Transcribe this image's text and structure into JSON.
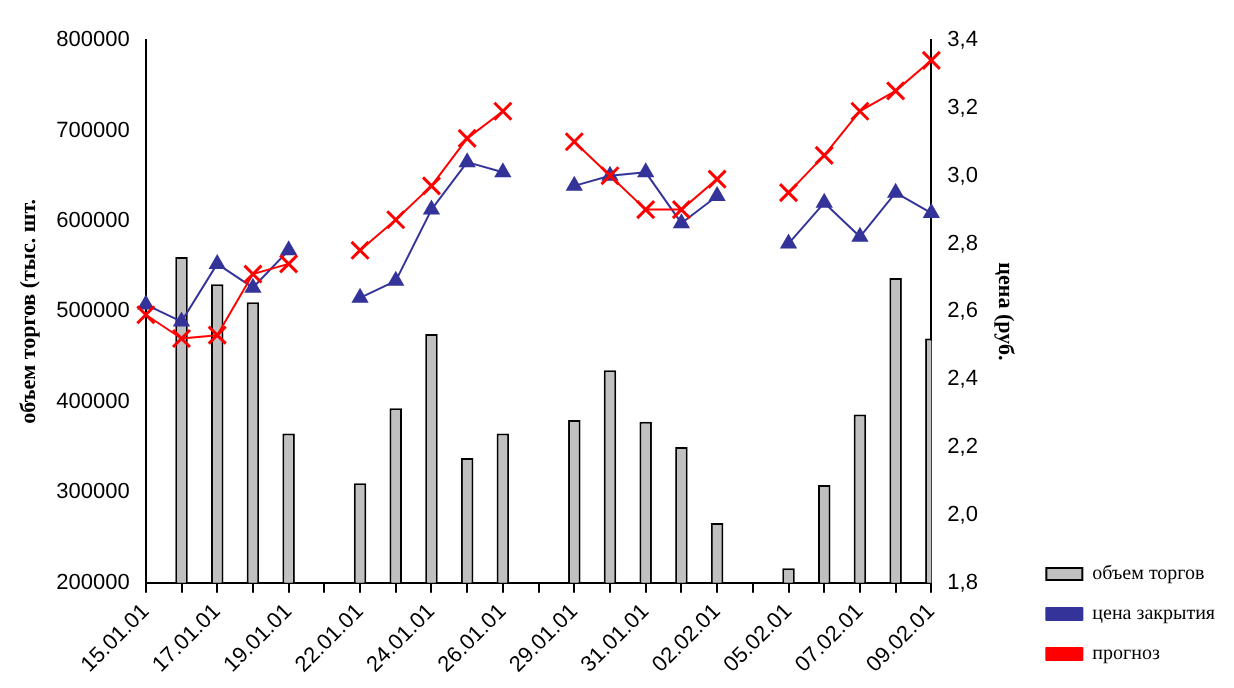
{
  "chart_data": {
    "type": "bar",
    "xlabel": null,
    "ylabel": "объем торгов (тыс. шт.",
    "y2label": "цена (руб.",
    "categories": [
      "15.01.01",
      null,
      "17.01.01",
      null,
      "19.01.01",
      null,
      "22.01.01",
      null,
      "24.01.01",
      null,
      "26.01.01",
      null,
      "29.01.01",
      null,
      "31.01.01",
      null,
      "02.02.01",
      null,
      "05.02.01",
      null,
      "07.02.01",
      null,
      "09.02.01"
    ],
    "series": [
      {
        "name": "объем торгов",
        "color": "#c0c0c0",
        "values": [
          null,
          560000,
          530000,
          510000,
          365000,
          null,
          310000,
          393000,
          475000,
          338000,
          365000,
          null,
          380000,
          435000,
          378000,
          350000,
          266000,
          null,
          216000,
          308000,
          386000,
          537000,
          470000
        ]
      },
      {
        "name": "цена закрытия",
        "type": "line",
        "axis": "y2",
        "marker": "triangle",
        "color": "#333399",
        "values": [
          2.62,
          2.57,
          2.74,
          2.67,
          2.78,
          null,
          2.64,
          2.69,
          2.9,
          3.04,
          3.01,
          null,
          2.97,
          3.0,
          3.01,
          2.86,
          2.94,
          null,
          2.8,
          2.92,
          2.82,
          2.95,
          2.89
        ]
      },
      {
        "name": "прогноз",
        "type": "line",
        "axis": "y2",
        "marker": "cross",
        "color": "#ff0000",
        "values": [
          2.59,
          2.52,
          2.53,
          2.71,
          2.74,
          null,
          2.78,
          2.87,
          2.97,
          3.11,
          3.19,
          null,
          3.1,
          3.0,
          2.9,
          2.9,
          2.99,
          null,
          2.95,
          3.06,
          3.19,
          3.25,
          3.34
        ]
      }
    ],
    "ylim": [
      200000,
      800000
    ],
    "yticks": [
      200000,
      300000,
      400000,
      500000,
      600000,
      700000,
      800000
    ],
    "y2lim": [
      1.8,
      3.4
    ],
    "y2ticks": [
      {
        "value": 1.8,
        "label": "1,8"
      },
      {
        "value": 2.0,
        "label": "2,0"
      },
      {
        "value": 2.2,
        "label": "2,2"
      },
      {
        "value": 2.4,
        "label": "2,4"
      },
      {
        "value": 2.6,
        "label": "2,6"
      },
      {
        "value": 2.8,
        "label": "2,8"
      },
      {
        "value": 3.0,
        "label": "3,0"
      },
      {
        "value": 3.2,
        "label": "3,2"
      },
      {
        "value": 3.4,
        "label": "3,4"
      }
    ],
    "legend": "bottom right",
    "grid": false
  }
}
